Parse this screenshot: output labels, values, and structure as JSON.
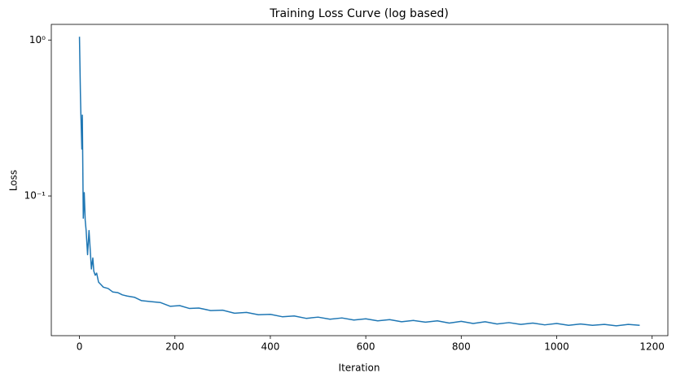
{
  "chart_data": {
    "type": "line",
    "title": "Training Loss Curve (log based)",
    "x_label": "Iteration",
    "y_label": "Loss",
    "yscale": "log",
    "color": "#1f77b4",
    "x": [
      0,
      2,
      3,
      5,
      6,
      8,
      10,
      12,
      14,
      17,
      20,
      22,
      25,
      28,
      30,
      33,
      36,
      40,
      45,
      50,
      60,
      70,
      80,
      90,
      100,
      115,
      130,
      150,
      170,
      190,
      210,
      230,
      250,
      275,
      300,
      325,
      350,
      375,
      400,
      425,
      450,
      475,
      500,
      525,
      550,
      575,
      600,
      625,
      650,
      675,
      700,
      725,
      750,
      775,
      800,
      825,
      850,
      875,
      900,
      925,
      950,
      975,
      1000,
      1025,
      1050,
      1075,
      1100,
      1125,
      1150,
      1174
    ],
    "values": [
      1.05,
      0.45,
      0.33,
      0.2,
      0.33,
      0.072,
      0.105,
      0.07,
      0.06,
      0.042,
      0.06,
      0.048,
      0.034,
      0.04,
      0.033,
      0.031,
      0.032,
      0.028,
      0.027,
      0.026,
      0.0255,
      0.0242,
      0.024,
      0.0232,
      0.0228,
      0.0224,
      0.0213,
      0.021,
      0.0207,
      0.0196,
      0.0198,
      0.019,
      0.0191,
      0.0184,
      0.0185,
      0.0177,
      0.0179,
      0.0173,
      0.0174,
      0.0168,
      0.017,
      0.0164,
      0.0167,
      0.0162,
      0.0165,
      0.016,
      0.0163,
      0.0158,
      0.0161,
      0.0156,
      0.0159,
      0.0155,
      0.0158,
      0.0153,
      0.0157,
      0.0152,
      0.0156,
      0.0151,
      0.0154,
      0.015,
      0.0153,
      0.0149,
      0.0152,
      0.0148,
      0.0151,
      0.0148,
      0.015,
      0.0147,
      0.015,
      0.0148
    ],
    "xlim": [
      -59,
      1233
    ],
    "ylim": [
      0.0127,
      1.26
    ],
    "xticks": [
      0,
      200,
      400,
      600,
      800,
      1000,
      1200
    ],
    "yticks": [
      {
        "value": 1,
        "label": "10⁰"
      },
      {
        "value": 0.1,
        "label": "10⁻¹"
      }
    ]
  }
}
